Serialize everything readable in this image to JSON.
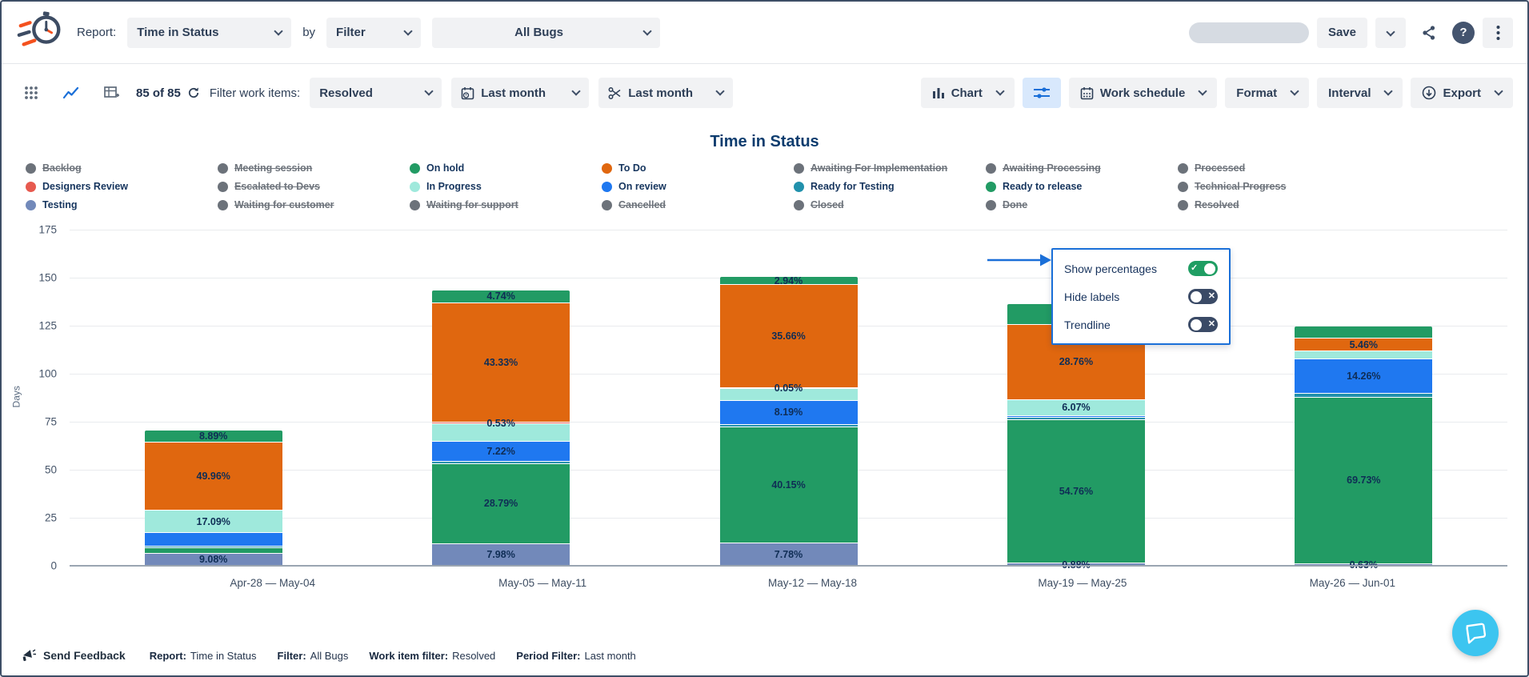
{
  "header": {
    "report_label": "Report:",
    "report_select": "Time in Status",
    "by_label": "by",
    "filter_select": "Filter",
    "scope_select": "All Bugs",
    "save_label": "Save"
  },
  "toolbar": {
    "count_text": "85 of 85",
    "filter_work_items_label": "Filter work items:",
    "work_item_filter_select": "Resolved",
    "date_range_select": "Last month",
    "period_select": "Last month",
    "chart_label": "Chart",
    "work_schedule_label": "Work schedule",
    "format_label": "Format",
    "interval_label": "Interval",
    "export_label": "Export"
  },
  "settings_popup": {
    "items": [
      {
        "label": "Show percentages",
        "state": "on"
      },
      {
        "label": "Hide labels",
        "state": "off"
      },
      {
        "label": "Trendline",
        "state": "off"
      }
    ]
  },
  "legend": {
    "items": [
      {
        "label": "Backlog",
        "series": null,
        "struck": true
      },
      {
        "label": "Meeting session",
        "series": null,
        "struck": true
      },
      {
        "label": "On hold",
        "series": "On hold",
        "struck": false
      },
      {
        "label": "To Do",
        "series": "To Do",
        "struck": false
      },
      {
        "label": "Awaiting For Implementation",
        "series": null,
        "struck": true
      },
      {
        "label": "Awaiting Processing",
        "series": null,
        "struck": true
      },
      {
        "label": "Processed",
        "series": null,
        "struck": true
      },
      {
        "label": "Designers Review",
        "series": "Designers Review",
        "struck": false
      },
      {
        "label": "Escalated to Devs",
        "series": null,
        "struck": true
      },
      {
        "label": "In Progress",
        "series": "In Progress",
        "struck": false
      },
      {
        "label": "On review",
        "series": "On review",
        "struck": false
      },
      {
        "label": "Ready for Testing",
        "series": "Ready for Testing",
        "struck": false
      },
      {
        "label": "Ready to release",
        "series": "Ready to release",
        "struck": false
      },
      {
        "label": "Technical Progress",
        "series": null,
        "struck": true
      },
      {
        "label": "Testing",
        "series": "Testing",
        "struck": false
      },
      {
        "label": "Waiting for customer",
        "series": null,
        "struck": true
      },
      {
        "label": "Waiting for support",
        "series": null,
        "struck": true
      },
      {
        "label": "Cancelled",
        "series": null,
        "struck": true
      },
      {
        "label": "Closed",
        "series": null,
        "struck": true
      },
      {
        "label": "Done",
        "series": null,
        "struck": true
      },
      {
        "label": "Resolved",
        "series": null,
        "struck": true
      }
    ],
    "disabled_color": "#6c727a"
  },
  "chart_data": {
    "type": "bar",
    "stacked": true,
    "title": "Time in Status",
    "ylabel": "Days",
    "ylim": [
      0,
      175
    ],
    "yticks": [
      0,
      25,
      50,
      75,
      100,
      125,
      150,
      175
    ],
    "grid": true,
    "legend_position": "top",
    "categories": [
      "Apr-28 — May-04",
      "May-05 — May-11",
      "May-12 — May-18",
      "May-19 — May-25",
      "May-26 — Jun-01"
    ],
    "series_colors": {
      "On hold": "#229b64",
      "To Do": "#e0670f",
      "Designers Review": "#e75a4f",
      "In Progress": "#9fe9dc",
      "On review": "#1f78f0",
      "Ready for Testing": "#2191ac",
      "Ready to release": "#229b64",
      "Testing": "#7289ba"
    },
    "bars": [
      {
        "category": "Apr-28 — May-04",
        "total_days": 70.5,
        "segments": [
          {
            "series": "Testing",
            "pct": 9.08,
            "label": "9.08%"
          },
          {
            "series": "Ready to release",
            "pct": 3.9,
            "label": ""
          },
          {
            "series": "Ready for Testing",
            "pct": 1.5,
            "label": ""
          },
          {
            "series": "On review",
            "pct": 9.5,
            "label": ""
          },
          {
            "series": "In Progress",
            "pct": 17.09,
            "label": "17.09%"
          },
          {
            "series": "To Do",
            "pct": 49.96,
            "label": "49.96%"
          },
          {
            "series": "On hold",
            "pct": 8.89,
            "label": "8.89%"
          }
        ]
      },
      {
        "category": "May-05 — May-11",
        "total_days": 143.5,
        "segments": [
          {
            "series": "Testing",
            "pct": 7.98,
            "label": "7.98%"
          },
          {
            "series": "Ready to release",
            "pct": 28.79,
            "label": "28.79%"
          },
          {
            "series": "Ready for Testing",
            "pct": 1.0,
            "label": ""
          },
          {
            "series": "On review",
            "pct": 7.22,
            "label": "7.22%"
          },
          {
            "series": "In Progress",
            "pct": 6.42,
            "label": ""
          },
          {
            "series": "Designers Review",
            "pct": 0.53,
            "label": "0.53%"
          },
          {
            "series": "To Do",
            "pct": 43.33,
            "label": "43.33%"
          },
          {
            "series": "On hold",
            "pct": 4.74,
            "label": "4.74%"
          }
        ]
      },
      {
        "category": "May-12 — May-18",
        "total_days": 150.5,
        "segments": [
          {
            "series": "Testing",
            "pct": 7.78,
            "label": "7.78%"
          },
          {
            "series": "Ready to release",
            "pct": 40.15,
            "label": "40.15%"
          },
          {
            "series": "Ready for Testing",
            "pct": 1.0,
            "label": ""
          },
          {
            "series": "On review",
            "pct": 8.19,
            "label": "8.19%"
          },
          {
            "series": "In Progress",
            "pct": 4.18,
            "label": ""
          },
          {
            "series": "Designers Review",
            "pct": 0.05,
            "label": "0.05%"
          },
          {
            "series": "To Do",
            "pct": 35.66,
            "label": "35.66%"
          },
          {
            "series": "On hold",
            "pct": 2.94,
            "label": "2.94%"
          }
        ]
      },
      {
        "category": "May-19 — May-25",
        "total_days": 136.5,
        "segments": [
          {
            "series": "Testing",
            "pct": 0.88,
            "label": "0.88%"
          },
          {
            "series": "Ready to release",
            "pct": 54.76,
            "label": "54.76%"
          },
          {
            "series": "Ready for Testing",
            "pct": 0.8,
            "label": ""
          },
          {
            "series": "On review",
            "pct": 0.7,
            "label": ""
          },
          {
            "series": "In Progress",
            "pct": 6.07,
            "label": "6.07%"
          },
          {
            "series": "To Do",
            "pct": 28.76,
            "label": "28.76%"
          },
          {
            "series": "On hold",
            "pct": 7.94,
            "label": "7.94%"
          }
        ]
      },
      {
        "category": "May-26 — Jun-01",
        "total_days": 124.5,
        "segments": [
          {
            "series": "Testing",
            "pct": 0.63,
            "label": "0.63%"
          },
          {
            "series": "Ready to release",
            "pct": 69.73,
            "label": "69.73%"
          },
          {
            "series": "Ready for Testing",
            "pct": 1.7,
            "label": ""
          },
          {
            "series": "On review",
            "pct": 14.26,
            "label": "14.26%"
          },
          {
            "series": "In Progress",
            "pct": 3.3,
            "label": ""
          },
          {
            "series": "To Do",
            "pct": 5.46,
            "label": "5.46%"
          },
          {
            "series": "On hold",
            "pct": 4.9,
            "label": ""
          }
        ]
      }
    ]
  },
  "footer": {
    "send_feedback": "Send Feedback",
    "summary": [
      {
        "label": "Report:",
        "value": "Time in Status"
      },
      {
        "label": "Filter:",
        "value": "All Bugs"
      },
      {
        "label": "Work item filter:",
        "value": "Resolved"
      },
      {
        "label": "Period Filter:",
        "value": "Last month"
      }
    ]
  },
  "colors": {
    "accent_blue": "#1a6fd8",
    "toggle_on_green": "#1f9e63",
    "toggle_off_navy": "#3a4a66",
    "chat_fab_blue": "#3cc5f0",
    "label_navy": "#0f2d55",
    "disabled_gray": "#6c727a"
  }
}
